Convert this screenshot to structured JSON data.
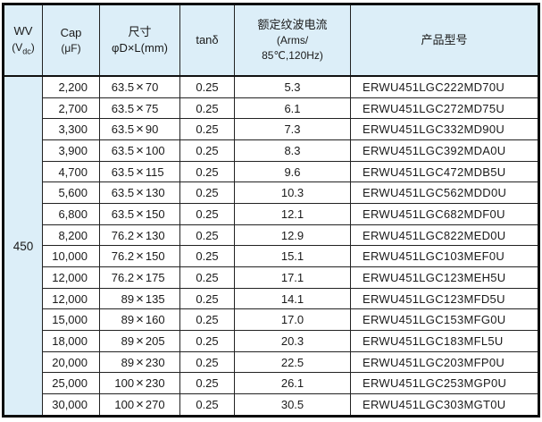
{
  "colors": {
    "header_bg": "#dceef8",
    "inner_border": "#222222",
    "outer_border": "#0d0d0d",
    "text": "#1a1a1a"
  },
  "header": {
    "wv_top": "WV",
    "wv_bottom_pre": "(V",
    "wv_bottom_sub": "dc",
    "wv_bottom_post": ")",
    "cap_top": "Cap",
    "cap_bottom": "(μF)",
    "size_top": "尺寸",
    "size_bottom": "φD×L(mm)",
    "tand": "tanδ",
    "ripple_line1": "额定纹波电流",
    "ripple_line2": "(Arms/",
    "ripple_line3": "85℃,120Hz)",
    "part": "产品型号"
  },
  "table": {
    "wv_value": "450",
    "dim_sep": "×",
    "rows": [
      {
        "cap": "2,200",
        "dim_d": "63.5",
        "dim_l": "70",
        "tand": "0.25",
        "ripple": "5.3",
        "part": "ERWU451LGC222MD70U"
      },
      {
        "cap": "2,700",
        "dim_d": "63.5",
        "dim_l": "75",
        "tand": "0.25",
        "ripple": "6.1",
        "part": "ERWU451LGC272MD75U"
      },
      {
        "cap": "3,300",
        "dim_d": "63.5",
        "dim_l": "90",
        "tand": "0.25",
        "ripple": "7.3",
        "part": "ERWU451LGC332MD90U"
      },
      {
        "cap": "3,900",
        "dim_d": "63.5",
        "dim_l": "100",
        "tand": "0.25",
        "ripple": "8.3",
        "part": "ERWU451LGC392MDA0U"
      },
      {
        "cap": "4,700",
        "dim_d": "63.5",
        "dim_l": "115",
        "tand": "0.25",
        "ripple": "9.6",
        "part": "ERWU451LGC472MDB5U"
      },
      {
        "cap": "5,600",
        "dim_d": "63.5",
        "dim_l": "130",
        "tand": "0.25",
        "ripple": "10.3",
        "part": "ERWU451LGC562MDD0U"
      },
      {
        "cap": "6,800",
        "dim_d": "63.5",
        "dim_l": "150",
        "tand": "0.25",
        "ripple": "12.1",
        "part": "ERWU451LGC682MDF0U"
      },
      {
        "cap": "8,200",
        "dim_d": "76.2",
        "dim_l": "130",
        "tand": "0.25",
        "ripple": "12.9",
        "part": "ERWU451LGC822MED0U"
      },
      {
        "cap": "10,000",
        "dim_d": "76.2",
        "dim_l": "150",
        "tand": "0.25",
        "ripple": "15.1",
        "part": "ERWU451LGC103MEF0U"
      },
      {
        "cap": "12,000",
        "dim_d": "76.2",
        "dim_l": "175",
        "tand": "0.25",
        "ripple": "17.1",
        "part": "ERWU451LGC123MEH5U"
      },
      {
        "cap": "12,000",
        "dim_d": "89",
        "dim_l": "135",
        "tand": "0.25",
        "ripple": "14.1",
        "part": "ERWU451LGC123MFD5U"
      },
      {
        "cap": "15,000",
        "dim_d": "89",
        "dim_l": "160",
        "tand": "0.25",
        "ripple": "17.0",
        "part": "ERWU451LGC153MFG0U"
      },
      {
        "cap": "18,000",
        "dim_d": "89",
        "dim_l": "205",
        "tand": "0.25",
        "ripple": "20.3",
        "part": "ERWU451LGC183MFL5U"
      },
      {
        "cap": "20,000",
        "dim_d": "89",
        "dim_l": "230",
        "tand": "0.25",
        "ripple": "22.5",
        "part": "ERWU451LGC203MFP0U"
      },
      {
        "cap": "25,000",
        "dim_d": "100",
        "dim_l": "230",
        "tand": "0.25",
        "ripple": "26.1",
        "part": "ERWU451LGC253MGP0U"
      },
      {
        "cap": "30,000",
        "dim_d": "100",
        "dim_l": "270",
        "tand": "0.25",
        "ripple": "30.5",
        "part": "ERWU451LGC303MGT0U"
      }
    ]
  }
}
